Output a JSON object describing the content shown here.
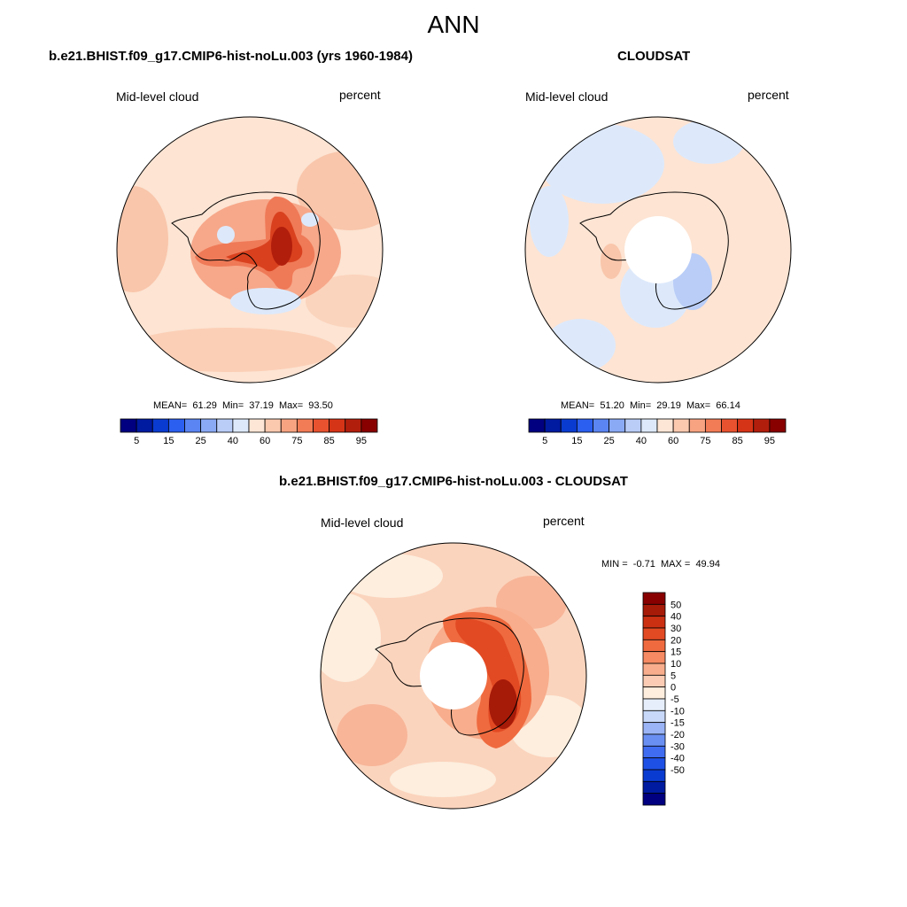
{
  "season": "ANN",
  "panels": [
    {
      "title": "b.e21.BHIST.f09_g17.CMIP6-hist-noLu.003 (yrs 1960-1984)",
      "left_label": "Mid-level cloud",
      "right_label": "percent",
      "stats": {
        "mean": "61.29",
        "min": "37.19",
        "max": "93.50"
      }
    },
    {
      "title": "CLOUDSAT",
      "left_label": "Mid-level cloud",
      "right_label": "percent",
      "stats": {
        "mean": "51.20",
        "min": "29.19",
        "max": "66.14"
      }
    },
    {
      "title": "b.e21.BHIST.f09_g17.CMIP6-hist-noLu.003 - CLOUDSAT",
      "left_label": "Mid-level cloud",
      "right_label": "percent",
      "stats": {
        "min": "-0.71",
        "max": "49.94"
      }
    }
  ],
  "labels": {
    "mean": "MEAN=",
    "min": "Min=",
    "max": "Max=",
    "diff_min": "MIN =",
    "diff_max": "MAX ="
  },
  "colorbar_abs": {
    "colors": [
      "#000080",
      "#001aa0",
      "#0a3bd0",
      "#2b5ff0",
      "#5a85f2",
      "#8aaaf5",
      "#b9cdf7",
      "#dde9fb",
      "#fde6d6",
      "#fbc9ae",
      "#f7a382",
      "#f27c56",
      "#e9522f",
      "#d63416",
      "#b21e0c",
      "#880000"
    ],
    "ticks": [
      "5",
      "15",
      "25",
      "40",
      "60",
      "75",
      "85",
      "95"
    ]
  },
  "colorbar_diff": {
    "colors": [
      "#000080",
      "#001aa0",
      "#0a3bd0",
      "#1e50e6",
      "#3f6cf0",
      "#6a8ff3",
      "#9ab4f6",
      "#c7d8f9",
      "#e6eefb",
      "#fdeede",
      "#fbccb3",
      "#f8ad8c",
      "#f58a63",
      "#ef6a3f",
      "#e24a23",
      "#cb3012",
      "#a61a08",
      "#880000"
    ],
    "ticks": [
      "-50",
      "-40",
      "-30",
      "-20",
      "-15",
      "-10",
      "-5",
      "0",
      "5",
      "10",
      "15",
      "20",
      "30",
      "40",
      "50"
    ]
  },
  "chart_data": [
    {
      "type": "heatmap",
      "projection": "south polar stereographic",
      "title": "b.e21.BHIST.f09_g17.CMIP6-hist-noLu.003 (yrs 1960-1984)",
      "variable": "Mid-level cloud",
      "units": "percent",
      "mean": 61.29,
      "min": 37.19,
      "max": 93.5,
      "levels": [
        5,
        10,
        15,
        20,
        25,
        30,
        40,
        50,
        60,
        70,
        75,
        80,
        85,
        90,
        95
      ]
    },
    {
      "type": "heatmap",
      "projection": "south polar stereographic",
      "title": "CLOUDSAT",
      "variable": "Mid-level cloud",
      "units": "percent",
      "mean": 51.2,
      "min": 29.19,
      "max": 66.14,
      "levels": [
        5,
        10,
        15,
        20,
        25,
        30,
        40,
        50,
        60,
        70,
        75,
        80,
        85,
        90,
        95
      ]
    },
    {
      "type": "heatmap",
      "projection": "south polar stereographic",
      "title": "b.e21.BHIST.f09_g17.CMIP6-hist-noLu.003 - CLOUDSAT",
      "variable": "Mid-level cloud",
      "units": "percent",
      "min": -0.71,
      "max": 49.94,
      "levels": [
        -50,
        -40,
        -30,
        -20,
        -15,
        -10,
        -5,
        0,
        5,
        10,
        15,
        20,
        30,
        40,
        50
      ]
    }
  ]
}
